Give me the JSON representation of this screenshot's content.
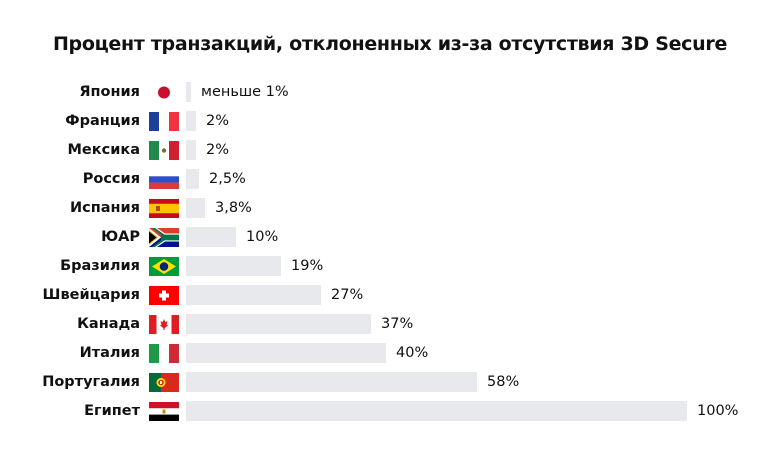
{
  "chart_data": {
    "type": "bar",
    "orientation": "horizontal",
    "title": "Процент транзакций, отклоненных из-за отсутствия 3D Secure",
    "xlabel": "",
    "ylabel": "",
    "xlim": [
      0,
      100
    ],
    "grid": false,
    "legend": null,
    "categories": [
      "Япония",
      "Франция",
      "Мексика",
      "Россия",
      "Испания",
      "ЮАР",
      "Бразилия",
      "Швейцария",
      "Канада",
      "Италия",
      "Португалия",
      "Египет"
    ],
    "values": [
      0.5,
      2,
      2,
      2.5,
      3.8,
      10,
      19,
      27,
      37,
      40,
      58,
      100
    ],
    "value_labels": [
      "меньше 1%",
      "2%",
      "2%",
      "2,5%",
      "3,8%",
      "10%",
      "19%",
      "27%",
      "37%",
      "40%",
      "58%",
      "100%"
    ],
    "flags": [
      "japan-flag",
      "france-flag",
      "mexico-flag",
      "russia-flag",
      "spain-flag",
      "south-africa-flag",
      "brazil-flag",
      "switzerland-flag",
      "canada-flag",
      "italy-flag",
      "portugal-flag",
      "egypt-flag"
    ],
    "bar_color": "#e8e9ed"
  }
}
